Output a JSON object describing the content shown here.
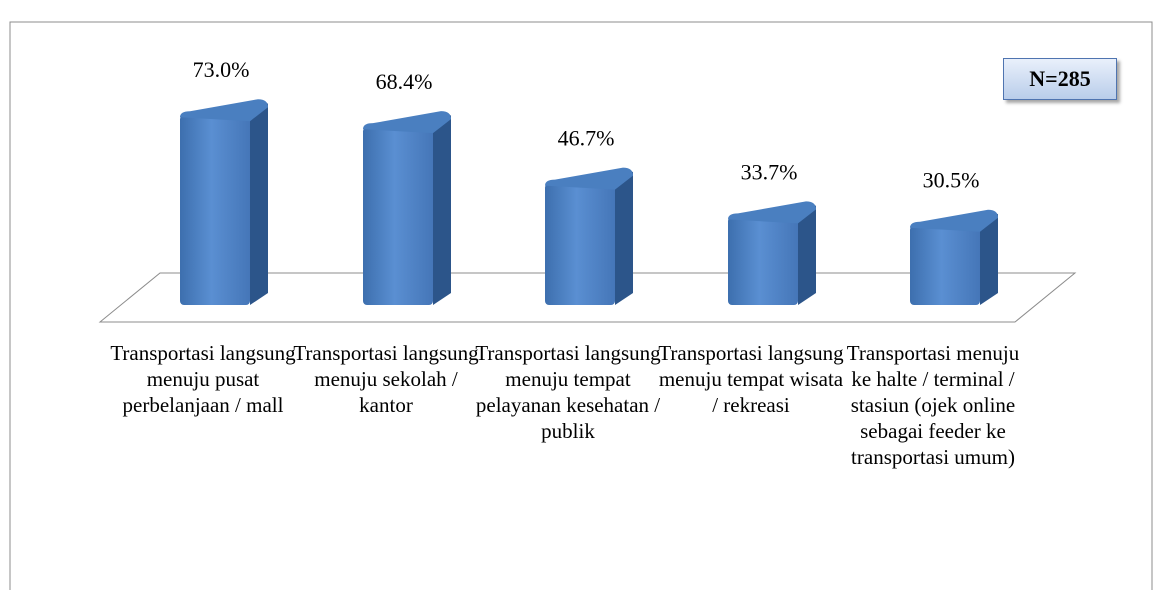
{
  "chart_data": {
    "type": "bar3d",
    "categories": [
      "Transportasi langsung menuju pusat perbelanjaan / mall",
      "Transportasi langsung menuju sekolah / kantor",
      "Transportasi langsung menuju tempat pelayanan kesehatan / publik",
      "Transportasi langsung menuju tempat wisata / rekreasi",
      "Transportasi menuju ke halte / terminal / stasiun (ojek online sebagai feeder ke transportasi umum)"
    ],
    "values": [
      73.0,
      68.4,
      46.7,
      33.7,
      30.5
    ],
    "value_labels": [
      "73.0%",
      "68.4%",
      "46.7%",
      "33.7%",
      "30.5%"
    ],
    "color": "#4f81bd",
    "annotation": "N=285"
  }
}
